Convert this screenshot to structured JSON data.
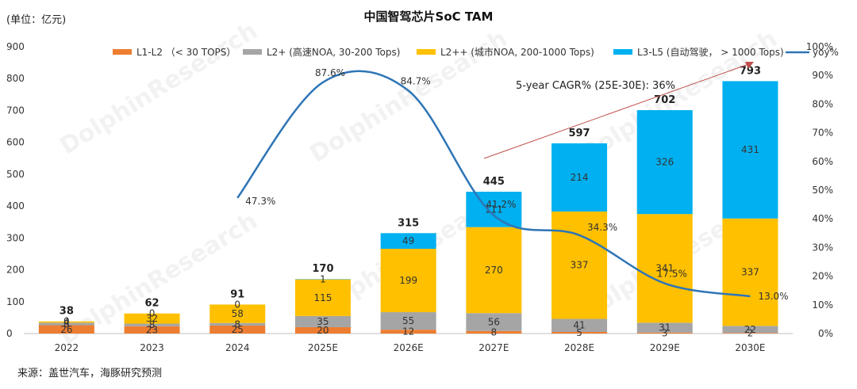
{
  "unit_label": "(单位：亿元)",
  "source": "来源：盖世汽车，海豚研究预测",
  "watermark": "DolphinResearch",
  "chart_data": {
    "type": "bar",
    "title": "中国智驾芯片SoC TAM",
    "categories": [
      "2022",
      "2023",
      "2024",
      "2025E",
      "2026E",
      "2027E",
      "2028E",
      "2029E",
      "2030E"
    ],
    "ylim": [
      0,
      900
    ],
    "yticks": [
      "0",
      "100",
      "200",
      "300",
      "400",
      "500",
      "600",
      "700",
      "800",
      "900"
    ],
    "y2lim": [
      0,
      100
    ],
    "y2ticks": [
      "0%",
      "10%",
      "20%",
      "30%",
      "40%",
      "50%",
      "60%",
      "70%",
      "80%",
      "90%",
      "100%"
    ],
    "legend_position": "top",
    "series": [
      {
        "name": "L1-L2  （< 30 TOPS）",
        "color": "#ED7D31",
        "values": [
          26,
          23,
          25,
          20,
          12,
          8,
          5,
          3,
          2
        ],
        "labels": [
          "26",
          "23",
          "25",
          "20",
          "12",
          "8",
          "5",
          "3",
          "2"
        ]
      },
      {
        "name": "L2+ (高速NOA, 30-200 Tops)",
        "color": "#A5A5A5",
        "values": [
          8,
          8,
          8,
          35,
          55,
          56,
          41,
          31,
          22
        ],
        "labels": [
          "8",
          "8",
          "8",
          "35",
          "55",
          "56",
          "41",
          "31",
          "22"
        ]
      },
      {
        "name": "L2++ (城市NOA, 200-1000 Tops)",
        "color": "#FFC000",
        "values": [
          4,
          32,
          58,
          115,
          199,
          270,
          337,
          341,
          337
        ],
        "labels": [
          "4",
          "32",
          "58",
          "115",
          "199",
          "270",
          "337",
          "341",
          "337"
        ]
      },
      {
        "name": "L3-L5 (自动驾驶，  > 1000 Tops)",
        "color": "#00B0F0",
        "values": [
          0,
          0,
          0,
          1,
          49,
          111,
          214,
          326,
          431
        ],
        "labels": [
          "0",
          "0",
          "0",
          "1",
          "49",
          "111",
          "214",
          "326",
          "431"
        ]
      }
    ],
    "totals": [
      "38",
      "62",
      "91",
      "170",
      "315",
      "445",
      "597",
      "702",
      "793"
    ],
    "line": {
      "name": "yoy%",
      "color": "#2E75B6",
      "axis": "right",
      "values": [
        null,
        null,
        47.3,
        87.6,
        84.7,
        41.2,
        34.3,
        17.5,
        13.0
      ],
      "labels": [
        "",
        "",
        "47.3%",
        "87.6%",
        "84.7%",
        "41.2%",
        "34.3%",
        "17.5%",
        "13.0%"
      ]
    },
    "annotation": "5-year CAGR% (25E-30E): 36%"
  }
}
